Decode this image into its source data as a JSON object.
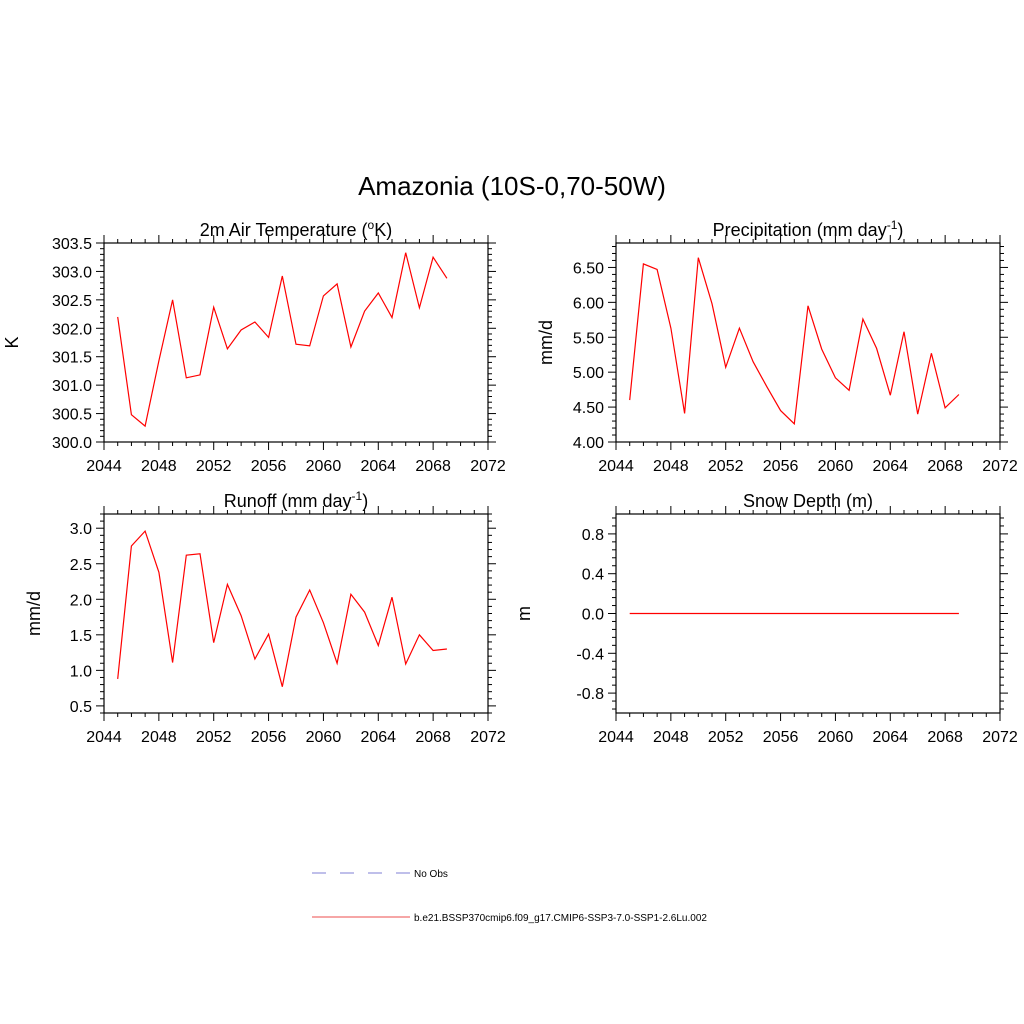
{
  "figure": {
    "title": "Amazonia (10S-0,70-50W)"
  },
  "legend": {
    "entries": [
      {
        "label": "No Obs",
        "color": "#9999dd",
        "dash": true
      },
      {
        "label": "b.e21.BSSP370cmip6.f09_g17.CMIP6-SSP3-7.0-SSP1-2.6Lu.002",
        "color": "#f07070",
        "dash": false
      }
    ]
  },
  "chart_data": [
    {
      "type": "line",
      "title": "2m Air Temperature",
      "title_unit_parts": [
        "(",
        "o",
        "K)"
      ],
      "ylabel": "K",
      "xlim": [
        2044,
        2072
      ],
      "ylim": [
        300.0,
        303.5
      ],
      "xticks": [
        "2044",
        "2048",
        "2052",
        "2056",
        "2060",
        "2064",
        "2068",
        "2072"
      ],
      "yticks": [
        "300.0",
        "300.5",
        "301.0",
        "301.5",
        "302.0",
        "302.5",
        "303.0",
        "303.5"
      ],
      "series": [
        {
          "color": "#ff0000",
          "x": [
            2045,
            2046,
            2047,
            2048,
            2049,
            2050,
            2051,
            2052,
            2053,
            2054,
            2055,
            2056,
            2057,
            2058,
            2059,
            2060,
            2061,
            2062,
            2063,
            2064,
            2065,
            2066,
            2067,
            2068,
            2069
          ],
          "y": [
            302.2,
            300.48,
            300.28,
            301.43,
            302.5,
            301.13,
            301.18,
            302.37,
            301.64,
            301.97,
            302.11,
            301.84,
            302.92,
            301.72,
            301.69,
            302.57,
            302.78,
            301.67,
            302.3,
            302.62,
            302.19,
            303.33,
            302.36,
            303.25,
            302.88
          ]
        }
      ]
    },
    {
      "type": "line",
      "title": "Precipitation",
      "title_unit_parts": [
        "(mm day",
        "-1",
        ")"
      ],
      "ylabel": "mm/d",
      "xlim": [
        2044,
        2072
      ],
      "ylim": [
        4.0,
        6.85
      ],
      "xticks": [
        "2044",
        "2048",
        "2052",
        "2056",
        "2060",
        "2064",
        "2068",
        "2072"
      ],
      "yticks": [
        "4.00",
        "4.50",
        "5.00",
        "5.50",
        "6.00",
        "6.50"
      ],
      "series": [
        {
          "color": "#ff0000",
          "x": [
            2045,
            2046,
            2047,
            2048,
            2049,
            2050,
            2051,
            2052,
            2053,
            2054,
            2055,
            2056,
            2057,
            2058,
            2059,
            2060,
            2061,
            2062,
            2063,
            2064,
            2065,
            2066,
            2067,
            2068,
            2069
          ],
          "y": [
            4.6,
            6.55,
            6.47,
            5.63,
            4.41,
            6.64,
            5.98,
            5.07,
            5.63,
            5.15,
            4.79,
            4.45,
            4.26,
            5.95,
            5.33,
            4.92,
            4.74,
            5.76,
            5.34,
            4.67,
            5.58,
            4.4,
            5.27,
            4.49,
            4.68
          ]
        }
      ]
    },
    {
      "type": "line",
      "title": "Runoff",
      "title_unit_parts": [
        "(mm day",
        "-1",
        ")"
      ],
      "ylabel": "mm/d",
      "xlim": [
        2044,
        2072
      ],
      "ylim": [
        0.4,
        3.2
      ],
      "xticks": [
        "2044",
        "2048",
        "2052",
        "2056",
        "2060",
        "2064",
        "2068",
        "2072"
      ],
      "yticks": [
        "0.5",
        "1.0",
        "1.5",
        "2.0",
        "2.5",
        "3.0"
      ],
      "series": [
        {
          "color": "#ff0000",
          "x": [
            2045,
            2046,
            2047,
            2048,
            2049,
            2050,
            2051,
            2052,
            2053,
            2054,
            2055,
            2056,
            2057,
            2058,
            2059,
            2060,
            2061,
            2062,
            2063,
            2064,
            2065,
            2066,
            2067,
            2068,
            2069
          ],
          "y": [
            0.88,
            2.75,
            2.96,
            2.38,
            1.11,
            2.62,
            2.64,
            1.39,
            2.21,
            1.77,
            1.16,
            1.51,
            0.77,
            1.75,
            2.13,
            1.67,
            1.1,
            2.07,
            1.82,
            1.35,
            2.03,
            1.09,
            1.5,
            1.28,
            1.3
          ]
        }
      ]
    },
    {
      "type": "line",
      "title": "Snow Depth (m)",
      "title_unit_parts": [],
      "ylabel": "m",
      "xlim": [
        2044,
        2072
      ],
      "ylim": [
        -1.0,
        1.0
      ],
      "xticks": [
        "2044",
        "2048",
        "2052",
        "2056",
        "2060",
        "2064",
        "2068",
        "2072"
      ],
      "yticks": [
        "-0.8",
        "-0.4",
        "0.0",
        "0.4",
        "0.8"
      ],
      "series": [
        {
          "color": "#ff0000",
          "x": [
            2045,
            2046,
            2047,
            2048,
            2049,
            2050,
            2051,
            2052,
            2053,
            2054,
            2055,
            2056,
            2057,
            2058,
            2059,
            2060,
            2061,
            2062,
            2063,
            2064,
            2065,
            2066,
            2067,
            2068,
            2069
          ],
          "y": [
            0,
            0,
            0,
            0,
            0,
            0,
            0,
            0,
            0,
            0,
            0,
            0,
            0,
            0,
            0,
            0,
            0,
            0,
            0,
            0,
            0,
            0,
            0,
            0,
            0
          ]
        }
      ]
    }
  ]
}
